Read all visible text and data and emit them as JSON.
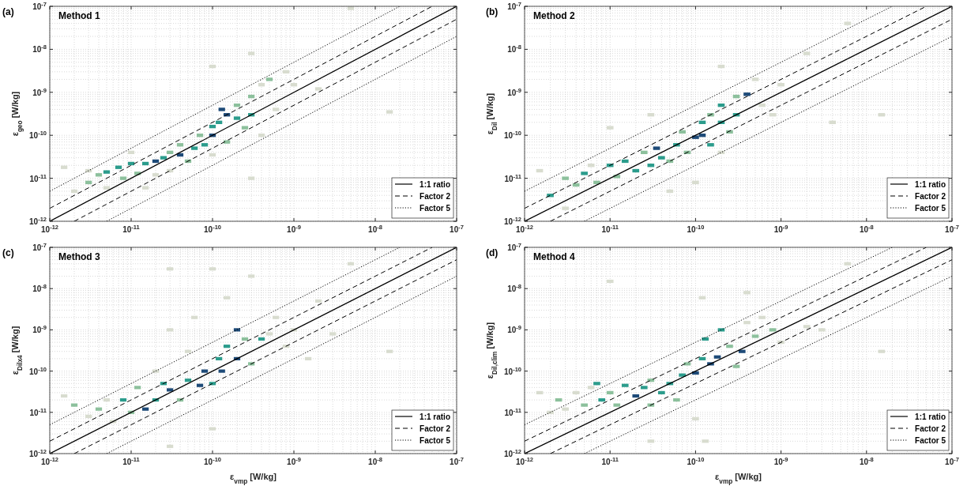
{
  "chart_data": [
    {
      "type": "scatter",
      "title": "Method 1",
      "annotations": [
        "(a)"
      ],
      "ylabel": "ε$_{geo}$ [W/kg]",
      "log": "xy",
      "grid": true,
      "legend": "bottom right",
      "xlim": [
        1e-12,
        1e-07
      ],
      "ylim": [
        1e-12,
        1e-07
      ],
      "xticks": [
        {
          "value": 1e-12,
          "label": "10$^{-12}$"
        },
        {
          "value": 1e-11,
          "label": "10$^{-11}$"
        },
        {
          "value": 1e-10,
          "label": "10$^{-10}$"
        },
        {
          "value": 1e-09,
          "label": "10$^{-9}$"
        },
        {
          "value": 1e-08,
          "label": "10$^{-8}$"
        },
        {
          "value": 1e-07,
          "label": "10$^{-7}$"
        }
      ],
      "yticks": [
        {
          "value": 1e-12,
          "label": "10$^{-12}$"
        },
        {
          "value": 1e-11,
          "label": "10$^{-11}$"
        },
        {
          "value": 1e-10,
          "label": "10$^{-10}$"
        },
        {
          "value": 1e-09,
          "label": "10$^{-9}$"
        },
        {
          "value": 1e-08,
          "label": "10$^{-8}$"
        },
        {
          "value": 1e-07,
          "label": "10$^{-7}$"
        }
      ],
      "series": [
        {
          "marker": "square",
          "color": "#d8dccf",
          "x": [
            1.5e-12,
            2e-12,
            3e-12,
            5e-12,
            1e-11,
            2e-11,
            3e-11,
            1e-10,
            4e-10,
            4e-10,
            6e-10,
            8e-10,
            1e-09,
            3e-10,
            1e-10,
            2e-09,
            5e-09,
            1.5e-08,
            3e-10,
            1.5e-11
          ],
          "values": [
            1.8e-11,
            5e-12,
            1.5e-11,
            6e-12,
            4e-11,
            1.2e-11,
            1.5e-11,
            3.5e-11,
            1.5e-09,
            1e-10,
            4e-10,
            3e-09,
            1.5e-09,
            8e-09,
            4e-09,
            1.2e-09,
            9e-08,
            3.5e-10,
            1e-11,
            6e-12
          ]
        },
        {
          "marker": "square",
          "color": "#8cc09c",
          "x": [
            3e-12,
            4e-12,
            8e-12,
            1.2e-11,
            3e-11,
            4e-11,
            5e-11,
            7e-11,
            1.5e-10,
            2e-10,
            2.5e-10,
            3e-10,
            5e-10
          ],
          "values": [
            8e-12,
            1.2e-11,
            1e-11,
            1.3e-11,
            4e-11,
            6e-11,
            2.5e-11,
            1e-10,
            7e-11,
            5e-10,
            1.5e-10,
            8e-10,
            2e-09
          ]
        },
        {
          "marker": "square",
          "color": "#2b9c8c",
          "x": [
            5e-12,
            7e-12,
            1e-11,
            1.5e-11,
            2.5e-11,
            6e-11,
            8e-11,
            1e-10,
            1.2e-10,
            2e-10,
            3e-10
          ],
          "values": [
            1.4e-11,
            1.8e-11,
            2.2e-11,
            2.2e-11,
            3e-11,
            5e-11,
            6e-11,
            1.6e-10,
            2e-10,
            2.5e-10,
            3e-10
          ]
        },
        {
          "marker": "square",
          "color": "#1d4a78",
          "x": [
            2e-11,
            4e-11,
            1e-10,
            1.3e-10,
            1.5e-10
          ],
          "values": [
            2.5e-11,
            3.5e-11,
            1e-10,
            4e-10,
            3e-10
          ]
        },
        {
          "type": "line",
          "name": "1:1 ratio",
          "color": "#000000",
          "line_style": "solid",
          "x": [
            1e-12,
            1e-07
          ],
          "values": [
            1e-12,
            1e-07
          ]
        },
        {
          "type": "line",
          "name": "Factor 2",
          "color": "#000000",
          "line_style": "dashed",
          "x": [
            1e-12,
            5e-08
          ],
          "values": [
            2e-12,
            1e-07
          ]
        },
        {
          "type": "line",
          "color": "#000000",
          "line_style": "dashed",
          "x": [
            2e-12,
            1e-07
          ],
          "values": [
            1e-12,
            5e-08
          ]
        },
        {
          "type": "line",
          "name": "Factor 5",
          "color": "#000000",
          "line_style": "dotted",
          "x": [
            1e-12,
            2e-08
          ],
          "values": [
            5e-12,
            1e-07
          ]
        },
        {
          "type": "line",
          "color": "#000000",
          "line_style": "dotted",
          "x": [
            5e-12,
            1e-07
          ],
          "values": [
            1e-12,
            2e-08
          ]
        }
      ]
    },
    {
      "type": "scatter",
      "title": "Method 2",
      "annotations": [
        "(b)"
      ],
      "ylabel": "ε$_{Dil}$ [W/kg]",
      "log": "xy",
      "grid": true,
      "legend": "bottom right",
      "xlim": [
        1e-12,
        1e-07
      ],
      "ylim": [
        1e-12,
        1e-07
      ],
      "xticks": [
        {
          "value": 1e-12,
          "label": "10$^{-12}$"
        },
        {
          "value": 1e-11,
          "label": "10$^{-11}$"
        },
        {
          "value": 1e-10,
          "label": "10$^{-10}$"
        },
        {
          "value": 1e-09,
          "label": "10$^{-9}$"
        },
        {
          "value": 1e-08,
          "label": "10$^{-8}$"
        },
        {
          "value": 1e-07,
          "label": "10$^{-7}$"
        }
      ],
      "yticks": [
        {
          "value": 1e-12,
          "label": "10$^{-12}$"
        },
        {
          "value": 1e-11,
          "label": "10$^{-11}$"
        },
        {
          "value": 1e-10,
          "label": "10$^{-10}$"
        },
        {
          "value": 1e-09,
          "label": "10$^{-9}$"
        },
        {
          "value": 1e-08,
          "label": "10$^{-8}$"
        },
        {
          "value": 1e-07,
          "label": "10$^{-7}$"
        }
      ],
      "series": [
        {
          "marker": "square",
          "color": "#d8dccf",
          "x": [
            1.5e-12,
            6e-12,
            5e-10,
            6e-10,
            8e-10,
            1e-09,
            2e-10,
            3e-11,
            1e-11,
            2e-09,
            6e-09,
            1.5e-08,
            4e-09,
            5e-11,
            3e-12,
            1e-10,
            2e-10
          ],
          "values": [
            1.5e-11,
            2e-11,
            2e-09,
            5e-10,
            3e-10,
            1.5e-09,
            4e-09,
            3e-10,
            1.5e-10,
            8e-09,
            4e-08,
            3e-10,
            2e-10,
            5e-12,
            2e-12,
            8e-12,
            4e-11
          ]
        },
        {
          "marker": "square",
          "color": "#8cc09c",
          "x": [
            3e-12,
            4e-12,
            7e-12,
            1.2e-11,
            2.5e-11,
            5e-11,
            7e-11,
            8e-11,
            1.5e-10,
            2.5e-10,
            3e-10
          ],
          "values": [
            1e-11,
            7e-12,
            8e-12,
            1.1e-11,
            4e-11,
            2.5e-11,
            1.2e-10,
            4e-11,
            3e-10,
            1.2e-10,
            8e-10
          ]
        },
        {
          "marker": "square",
          "color": "#2b9c8c",
          "x": [
            2e-12,
            5e-12,
            1e-11,
            1.5e-11,
            2e-11,
            3e-11,
            4e-11,
            6e-11,
            1.2e-10,
            1.5e-10,
            2e-10,
            2e-10,
            3e-10
          ],
          "values": [
            4e-12,
            1.3e-11,
            2e-11,
            2.5e-11,
            1.5e-11,
            2e-11,
            3e-11,
            6e-11,
            2e-10,
            6e-11,
            2e-10,
            5e-10,
            3e-10
          ]
        },
        {
          "marker": "square",
          "color": "#1d4a78",
          "x": [
            3.5e-11,
            1e-10,
            1.2e-10,
            4e-10
          ],
          "values": [
            5e-11,
            9e-11,
            1e-10,
            9e-10
          ]
        },
        {
          "type": "line",
          "name": "1:1 ratio",
          "color": "#000000",
          "line_style": "solid",
          "x": [
            1e-12,
            1e-07
          ],
          "values": [
            1e-12,
            1e-07
          ]
        },
        {
          "type": "line",
          "name": "Factor 2",
          "color": "#000000",
          "line_style": "dashed",
          "x": [
            1e-12,
            5e-08
          ],
          "values": [
            2e-12,
            1e-07
          ]
        },
        {
          "type": "line",
          "color": "#000000",
          "line_style": "dashed",
          "x": [
            2e-12,
            1e-07
          ],
          "values": [
            1e-12,
            5e-08
          ]
        },
        {
          "type": "line",
          "name": "Factor 5",
          "color": "#000000",
          "line_style": "dotted",
          "x": [
            1e-12,
            2e-08
          ],
          "values": [
            5e-12,
            1e-07
          ]
        },
        {
          "type": "line",
          "color": "#000000",
          "line_style": "dotted",
          "x": [
            5e-12,
            1e-07
          ],
          "values": [
            1e-12,
            2e-08
          ]
        }
      ]
    },
    {
      "type": "scatter",
      "title": "Method 3",
      "annotations": [
        "(c)"
      ],
      "xlabel": "ε$_{vmp}$ [W/kg]",
      "ylabel": "ε$_{Dilx4}$ [W/kg]",
      "log": "xy",
      "grid": true,
      "legend": "bottom right",
      "xlim": [
        1e-12,
        1e-07
      ],
      "ylim": [
        1e-12,
        1e-07
      ],
      "xticks": [
        {
          "value": 1e-12,
          "label": "10$^{-12}$"
        },
        {
          "value": 1e-11,
          "label": "10$^{-11}$"
        },
        {
          "value": 1e-10,
          "label": "10$^{-10}$"
        },
        {
          "value": 1e-09,
          "label": "10$^{-9}$"
        },
        {
          "value": 1e-08,
          "label": "10$^{-8}$"
        },
        {
          "value": 1e-07,
          "label": "10$^{-7}$"
        }
      ],
      "yticks": [
        {
          "value": 1e-12,
          "label": "10$^{-12}$"
        },
        {
          "value": 1e-11,
          "label": "10$^{-11}$"
        },
        {
          "value": 1e-10,
          "label": "10$^{-10}$"
        },
        {
          "value": 1e-09,
          "label": "10$^{-9}$"
        },
        {
          "value": 1e-08,
          "label": "10$^{-8}$"
        },
        {
          "value": 1e-07,
          "label": "10$^{-7}$"
        }
      ],
      "series": [
        {
          "marker": "square",
          "color": "#d8dccf",
          "x": [
            1.5e-12,
            3e-12,
            5e-12,
            6e-12,
            2e-11,
            3e-11,
            5e-11,
            6e-11,
            1e-10,
            1.5e-10,
            3e-10,
            5e-10,
            6e-10,
            8e-10,
            1e-09,
            2e-09,
            1.5e-09,
            3e-09,
            1.5e-08,
            5e-09,
            3e-11,
            1e-10,
            3e-11
          ],
          "values": [
            2.5e-11,
            8e-12,
            2e-11,
            6e-12,
            1e-10,
            1e-09,
            3e-10,
            2e-09,
            3e-08,
            6e-09,
            2e-08,
            8e-10,
            2e-09,
            4e-10,
            1e-09,
            5e-09,
            2e-10,
            8e-10,
            3e-10,
            4e-08,
            1.5e-12,
            4e-12,
            3e-08
          ]
        },
        {
          "marker": "square",
          "color": "#8cc09c",
          "x": [
            2e-12,
            4e-12,
            1e-11,
            1.2e-11,
            4e-11,
            2.5e-10,
            3e-10
          ],
          "values": [
            1.5e-11,
            1.2e-11,
            1e-11,
            4e-11,
            2e-11,
            6e-10,
            1.5e-10
          ]
        },
        {
          "marker": "square",
          "color": "#2b9c8c",
          "x": [
            8e-12,
            2e-11,
            2.5e-11,
            5e-11,
            1e-10,
            1.2e-10,
            1.5e-10,
            4e-10
          ],
          "values": [
            2e-11,
            2e-11,
            5e-11,
            6e-11,
            5e-11,
            2e-10,
            4e-10,
            6e-10
          ]
        },
        {
          "marker": "square",
          "color": "#1d4a78",
          "x": [
            1.5e-11,
            3e-11,
            7e-11,
            8e-11,
            1.3e-10,
            2e-10,
            2e-10
          ],
          "values": [
            1.2e-11,
            3.5e-11,
            4.5e-11,
            1e-10,
            1e-10,
            2e-10,
            1e-09
          ]
        },
        {
          "type": "line",
          "name": "1:1 ratio",
          "color": "#000000",
          "line_style": "solid",
          "x": [
            1e-12,
            1e-07
          ],
          "values": [
            1e-12,
            1e-07
          ]
        },
        {
          "type": "line",
          "name": "Factor 2",
          "color": "#000000",
          "line_style": "dashed",
          "x": [
            1e-12,
            5e-08
          ],
          "values": [
            2e-12,
            1e-07
          ]
        },
        {
          "type": "line",
          "color": "#000000",
          "line_style": "dashed",
          "x": [
            2e-12,
            1e-07
          ],
          "values": [
            1e-12,
            5e-08
          ]
        },
        {
          "type": "line",
          "name": "Factor 5",
          "color": "#000000",
          "line_style": "dotted",
          "x": [
            1e-12,
            2e-08
          ],
          "values": [
            5e-12,
            1e-07
          ]
        },
        {
          "type": "line",
          "color": "#000000",
          "line_style": "dotted",
          "x": [
            5e-12,
            1e-07
          ],
          "values": [
            1e-12,
            2e-08
          ]
        }
      ]
    },
    {
      "type": "scatter",
      "title": "Method 4",
      "annotations": [
        "(d)"
      ],
      "xlabel": "ε$_{vmp}$ [W/kg]",
      "ylabel": "ε$_{Dil,clim}$ [W/kg]",
      "log": "xy",
      "grid": true,
      "legend": "bottom right",
      "xlim": [
        1e-12,
        1e-07
      ],
      "ylim": [
        1e-12,
        1e-07
      ],
      "xticks": [
        {
          "value": 1e-12,
          "label": "10$^{-12}$"
        },
        {
          "value": 1e-11,
          "label": "10$^{-11}$"
        },
        {
          "value": 1e-10,
          "label": "10$^{-10}$"
        },
        {
          "value": 1e-09,
          "label": "10$^{-9}$"
        },
        {
          "value": 1e-08,
          "label": "10$^{-8}$"
        },
        {
          "value": 1e-07,
          "label": "10$^{-7}$"
        }
      ],
      "yticks": [
        {
          "value": 1e-12,
          "label": "10$^{-12}$"
        },
        {
          "value": 1e-11,
          "label": "10$^{-11}$"
        },
        {
          "value": 1e-10,
          "label": "10$^{-10}$"
        },
        {
          "value": 1e-09,
          "label": "10$^{-9}$"
        },
        {
          "value": 1e-08,
          "label": "10$^{-8}$"
        },
        {
          "value": 1e-07,
          "label": "10$^{-7}$"
        }
      ],
      "series": [
        {
          "marker": "square",
          "color": "#d8dccf",
          "x": [
            1.5e-12,
            2e-12,
            3e-12,
            4e-12,
            6e-12,
            4e-10,
            6e-10,
            1e-09,
            2e-09,
            3e-09,
            1e-11,
            1.2e-10,
            4e-10,
            1.5e-08,
            6e-09,
            3e-11,
            1.3e-10,
            1e-10
          ],
          "values": [
            3e-11,
            1e-11,
            1.2e-11,
            3e-11,
            4e-11,
            1.5e-09,
            2e-09,
            5e-10,
            1.2e-09,
            1e-09,
            1.5e-08,
            6e-09,
            8e-09,
            3e-10,
            4e-08,
            2e-12,
            2e-12,
            7e-12
          ]
        },
        {
          "marker": "square",
          "color": "#8cc09c",
          "x": [
            2.5e-12,
            5e-12,
            1e-11,
            1.2e-11,
            3e-11,
            3e-11,
            6e-11,
            8e-11,
            2.5e-10,
            3e-10,
            5e-10,
            8e-10
          ],
          "values": [
            2e-11,
            1.5e-11,
            3e-11,
            1.5e-11,
            6e-11,
            1.5e-11,
            2e-11,
            1.5e-10,
            4e-10,
            1.3e-10,
            7e-10,
            1e-09
          ]
        },
        {
          "marker": "square",
          "color": "#2b9c8c",
          "x": [
            7e-12,
            8e-12,
            1.5e-11,
            2.5e-11,
            4e-11,
            5e-11,
            7e-11,
            1.2e-10,
            1.3e-10,
            2e-10
          ],
          "values": [
            5e-11,
            2e-11,
            4.5e-11,
            4e-11,
            3e-11,
            5e-11,
            8e-11,
            2e-10,
            6e-10,
            1e-09
          ]
        },
        {
          "marker": "square",
          "color": "#1d4a78",
          "x": [
            2e-11,
            1e-10,
            1.5e-10,
            1.8e-10,
            3.5e-10
          ],
          "values": [
            2.5e-11,
            9e-11,
            1.5e-10,
            2.2e-10,
            3e-10
          ]
        },
        {
          "type": "line",
          "name": "1:1 ratio",
          "color": "#000000",
          "line_style": "solid",
          "x": [
            1e-12,
            1e-07
          ],
          "values": [
            1e-12,
            1e-07
          ]
        },
        {
          "type": "line",
          "name": "Factor 2",
          "color": "#000000",
          "line_style": "dashed",
          "x": [
            1e-12,
            5e-08
          ],
          "values": [
            2e-12,
            1e-07
          ]
        },
        {
          "type": "line",
          "color": "#000000",
          "line_style": "dashed",
          "x": [
            2e-12,
            1e-07
          ],
          "values": [
            1e-12,
            5e-08
          ]
        },
        {
          "type": "line",
          "name": "Factor 5",
          "color": "#000000",
          "line_style": "dotted",
          "x": [
            1e-12,
            2e-08
          ],
          "values": [
            5e-12,
            1e-07
          ]
        },
        {
          "type": "line",
          "color": "#000000",
          "line_style": "dotted",
          "x": [
            5e-12,
            1e-07
          ],
          "values": [
            1e-12,
            2e-08
          ]
        }
      ]
    }
  ]
}
